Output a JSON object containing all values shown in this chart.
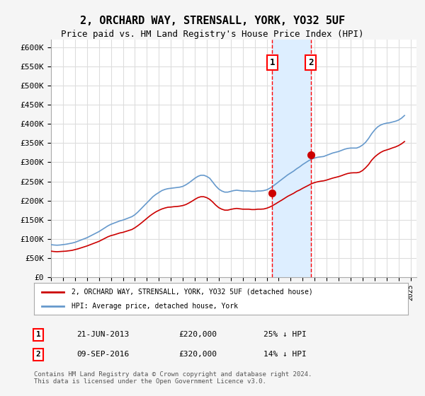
{
  "title": "2, ORCHARD WAY, STRENSALL, YORK, YO32 5UF",
  "subtitle": "Price paid vs. HM Land Registry's House Price Index (HPI)",
  "xlabel": "",
  "ylabel": "",
  "ylim": [
    0,
    620000
  ],
  "yticks": [
    0,
    50000,
    100000,
    150000,
    200000,
    250000,
    300000,
    350000,
    400000,
    450000,
    500000,
    550000,
    600000
  ],
  "ytick_labels": [
    "£0",
    "£50K",
    "£100K",
    "£150K",
    "£200K",
    "£250K",
    "£300K",
    "£350K",
    "£400K",
    "£450K",
    "£500K",
    "£550K",
    "£600K"
  ],
  "xtick_years": [
    1995,
    1996,
    1997,
    1998,
    1999,
    2000,
    2001,
    2002,
    2003,
    2004,
    2005,
    2006,
    2007,
    2008,
    2009,
    2010,
    2011,
    2012,
    2013,
    2014,
    2015,
    2016,
    2017,
    2018,
    2019,
    2020,
    2021,
    2022,
    2023,
    2024,
    2025
  ],
  "hpi_x": [
    1995.0,
    1995.25,
    1995.5,
    1995.75,
    1996.0,
    1996.25,
    1996.5,
    1996.75,
    1997.0,
    1997.25,
    1997.5,
    1997.75,
    1998.0,
    1998.25,
    1998.5,
    1998.75,
    1999.0,
    1999.25,
    1999.5,
    1999.75,
    2000.0,
    2000.25,
    2000.5,
    2000.75,
    2001.0,
    2001.25,
    2001.5,
    2001.75,
    2002.0,
    2002.25,
    2002.5,
    2002.75,
    2003.0,
    2003.25,
    2003.5,
    2003.75,
    2004.0,
    2004.25,
    2004.5,
    2004.75,
    2005.0,
    2005.25,
    2005.5,
    2005.75,
    2006.0,
    2006.25,
    2006.5,
    2006.75,
    2007.0,
    2007.25,
    2007.5,
    2007.75,
    2008.0,
    2008.25,
    2008.5,
    2008.75,
    2009.0,
    2009.25,
    2009.5,
    2009.75,
    2010.0,
    2010.25,
    2010.5,
    2010.75,
    2011.0,
    2011.25,
    2011.5,
    2011.75,
    2012.0,
    2012.25,
    2012.5,
    2012.75,
    2013.0,
    2013.25,
    2013.5,
    2013.75,
    2014.0,
    2014.25,
    2014.5,
    2014.75,
    2015.0,
    2015.25,
    2015.5,
    2015.75,
    2016.0,
    2016.25,
    2016.5,
    2016.75,
    2017.0,
    2017.25,
    2017.5,
    2017.75,
    2018.0,
    2018.25,
    2018.5,
    2018.75,
    2019.0,
    2019.25,
    2019.5,
    2019.75,
    2020.0,
    2020.25,
    2020.5,
    2020.75,
    2021.0,
    2021.25,
    2021.5,
    2021.75,
    2022.0,
    2022.25,
    2022.5,
    2022.75,
    2023.0,
    2023.25,
    2023.5,
    2023.75,
    2024.0,
    2024.25,
    2024.5
  ],
  "hpi_y": [
    85000,
    84000,
    83500,
    84000,
    85000,
    86000,
    87500,
    89000,
    91000,
    94000,
    97000,
    100000,
    103000,
    107000,
    111000,
    115000,
    119000,
    124000,
    129000,
    134000,
    138000,
    141000,
    144000,
    147000,
    149000,
    152000,
    155000,
    158000,
    163000,
    170000,
    178000,
    186000,
    194000,
    202000,
    210000,
    216000,
    221000,
    226000,
    229000,
    231000,
    232000,
    233000,
    234000,
    235000,
    237000,
    241000,
    246000,
    252000,
    258000,
    263000,
    266000,
    266000,
    263000,
    258000,
    248000,
    238000,
    230000,
    225000,
    222000,
    222000,
    224000,
    226000,
    227000,
    226000,
    225000,
    225000,
    225000,
    224000,
    224000,
    225000,
    225000,
    226000,
    228000,
    232000,
    237000,
    243000,
    249000,
    255000,
    261000,
    267000,
    272000,
    277000,
    283000,
    288000,
    294000,
    299000,
    304000,
    308000,
    311000,
    313000,
    314000,
    315000,
    318000,
    321000,
    324000,
    326000,
    328000,
    331000,
    334000,
    336000,
    337000,
    337000,
    337000,
    340000,
    345000,
    352000,
    362000,
    374000,
    384000,
    392000,
    397000,
    400000,
    402000,
    403000,
    405000,
    407000,
    410000,
    415000,
    422000
  ],
  "red_x": [
    1995.0,
    1995.25,
    1995.5,
    1995.75,
    1996.0,
    1996.25,
    1996.5,
    1996.75,
    1997.0,
    1997.25,
    1997.5,
    1997.75,
    1998.0,
    1998.25,
    1998.5,
    1998.75,
    1999.0,
    1999.25,
    1999.5,
    1999.75,
    2000.0,
    2000.25,
    2000.5,
    2000.75,
    2001.0,
    2001.25,
    2001.5,
    2001.75,
    2002.0,
    2002.25,
    2002.5,
    2002.75,
    2003.0,
    2003.25,
    2003.5,
    2003.75,
    2004.0,
    2004.25,
    2004.5,
    2004.75,
    2005.0,
    2005.25,
    2005.5,
    2005.75,
    2006.0,
    2006.25,
    2006.5,
    2006.75,
    2007.0,
    2007.25,
    2007.5,
    2007.75,
    2008.0,
    2008.25,
    2008.5,
    2008.75,
    2009.0,
    2009.25,
    2009.5,
    2009.75,
    2010.0,
    2010.25,
    2010.5,
    2010.75,
    2011.0,
    2011.25,
    2011.5,
    2011.75,
    2012.0,
    2012.25,
    2012.5,
    2012.75,
    2013.0,
    2013.25,
    2013.5,
    2013.75,
    2014.0,
    2014.25,
    2014.5,
    2014.75,
    2015.0,
    2015.25,
    2015.5,
    2015.75,
    2016.0,
    2016.25,
    2016.5,
    2016.75,
    2017.0,
    2017.25,
    2017.5,
    2017.75,
    2018.0,
    2018.25,
    2018.5,
    2018.75,
    2019.0,
    2019.25,
    2019.5,
    2019.75,
    2020.0,
    2020.25,
    2020.5,
    2020.75,
    2021.0,
    2021.25,
    2021.5,
    2021.75,
    2022.0,
    2022.25,
    2022.5,
    2022.75,
    2023.0,
    2023.25,
    2023.5,
    2023.75,
    2024.0,
    2024.25,
    2024.5
  ],
  "red_y": [
    68000,
    67000,
    66500,
    67000,
    67500,
    68000,
    69000,
    70000,
    72000,
    74000,
    76500,
    79000,
    81500,
    84500,
    87500,
    90500,
    93500,
    97500,
    101500,
    105500,
    108500,
    110500,
    113000,
    115500,
    117000,
    119500,
    122000,
    124500,
    129000,
    134500,
    140500,
    147000,
    153500,
    160000,
    165500,
    170500,
    174500,
    178000,
    180500,
    182500,
    183000,
    184000,
    184500,
    185500,
    187000,
    189500,
    193500,
    198000,
    203000,
    207500,
    210000,
    210000,
    207500,
    203000,
    196000,
    188000,
    181500,
    177500,
    175000,
    175000,
    177000,
    178500,
    179500,
    178500,
    177500,
    177500,
    177500,
    176500,
    176500,
    177500,
    177500,
    178000,
    180000,
    183000,
    187000,
    191500,
    196500,
    201000,
    206000,
    211000,
    215000,
    219000,
    224000,
    227500,
    232000,
    236000,
    240000,
    244000,
    247000,
    249000,
    250500,
    251500,
    253500,
    256000,
    258500,
    260500,
    262500,
    265000,
    268000,
    270500,
    272000,
    272500,
    272500,
    274000,
    278500,
    285500,
    294000,
    305000,
    313500,
    320000,
    325500,
    329500,
    332000,
    334500,
    337500,
    340000,
    343500,
    348000,
    354000
  ],
  "sale1_x": 2013.47,
  "sale1_y": 220000,
  "sale2_x": 2016.67,
  "sale2_y": 320000,
  "vline1_x": 2013.47,
  "vline2_x": 2016.67,
  "shade_color": "#ddeeff",
  "hpi_color": "#6699cc",
  "red_color": "#cc0000",
  "dot_color": "#cc0000",
  "legend_label_red": "2, ORCHARD WAY, STRENSALL, YORK, YO32 5UF (detached house)",
  "legend_label_blue": "HPI: Average price, detached house, York",
  "annotation1_num": "1",
  "annotation2_num": "2",
  "info1_num": "1",
  "info1_date": "21-JUN-2013",
  "info1_price": "£220,000",
  "info1_hpi": "25% ↓ HPI",
  "info2_num": "2",
  "info2_date": "09-SEP-2016",
  "info2_price": "£320,000",
  "info2_hpi": "14% ↓ HPI",
  "footnote": "Contains HM Land Registry data © Crown copyright and database right 2024.\nThis data is licensed under the Open Government Licence v3.0.",
  "bg_color": "#f5f5f5",
  "plot_bg_color": "#ffffff",
  "grid_color": "#dddddd"
}
